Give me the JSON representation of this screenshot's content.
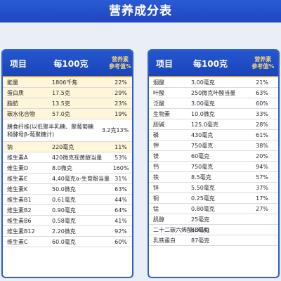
{
  "title": "营养成分表",
  "left": {
    "headers": {
      "item": "项目",
      "per": "每100克",
      "nrv": "营养素\n参考值%"
    },
    "rows": [
      {
        "name": "能量",
        "amount": "1806千焦",
        "nrv": "22%",
        "hl": true
      },
      {
        "name": "蛋白质",
        "amount": "17.5克",
        "nrv": "29%",
        "hl": true
      },
      {
        "name": "脂肪",
        "amount": "13.5克",
        "nrv": "23%",
        "hl": true
      },
      {
        "name": "碳水化合物",
        "amount": "57.0克",
        "nrv": "19%",
        "hl": true
      },
      {
        "name": "膳食纤维(以低聚半乳糖、聚葡萄糖和酵母β-葡聚糖计)",
        "amount": "3.2克",
        "nrv": "13%",
        "hl": false,
        "tall": true
      },
      {
        "name": "钠",
        "amount": "220毫克",
        "nrv": "11%",
        "hl": true
      },
      {
        "name": "维生素A",
        "amount": "420微克视黄醇当量",
        "nrv": "53%",
        "hl": false
      },
      {
        "name": "维生素D",
        "amount": "8.0微克",
        "nrv": "160%",
        "hl": false
      },
      {
        "name": "维生素E",
        "amount": "4.40毫克α-生育酚当量",
        "nrv": "31%",
        "hl": false
      },
      {
        "name": "维生素K",
        "amount": "50.0微克",
        "nrv": "63%",
        "hl": false
      },
      {
        "name": "维生素B1",
        "amount": "0.61毫克",
        "nrv": "44%",
        "hl": false
      },
      {
        "name": "维生素B2",
        "amount": "0.90毫克",
        "nrv": "64%",
        "hl": false
      },
      {
        "name": "维生素B6",
        "amount": "0.58毫克",
        "nrv": "41%",
        "hl": false
      },
      {
        "name": "维生素B12",
        "amount": "2.20微克",
        "nrv": "92%",
        "hl": false
      },
      {
        "name": "维生素C",
        "amount": "60.0毫克",
        "nrv": "60%",
        "hl": false
      }
    ]
  },
  "right": {
    "headers": {
      "item": "项目",
      "per": "每100克",
      "nrv": "营养素\n参考值%"
    },
    "rows": [
      {
        "name": "烟酸",
        "amount": "3.00毫克",
        "nrv": "21%"
      },
      {
        "name": "叶酸",
        "amount": "250微克叶酸当量",
        "nrv": "63%"
      },
      {
        "name": "泛酸",
        "amount": "3.00毫克",
        "nrv": "60%"
      },
      {
        "name": "生物素",
        "amount": "10.0微克",
        "nrv": "33%"
      },
      {
        "name": "胆碱",
        "amount": "125.0毫克",
        "nrv": "28%"
      },
      {
        "name": "磷",
        "amount": "430毫克",
        "nrv": "61%"
      },
      {
        "name": "钾",
        "amount": "750毫克",
        "nrv": "38%"
      },
      {
        "name": "镁",
        "amount": "60毫克",
        "nrv": "20%"
      },
      {
        "name": "钙",
        "amount": "750毫克",
        "nrv": "94%"
      },
      {
        "name": "铁",
        "amount": "8.5毫克",
        "nrv": "57%"
      },
      {
        "name": "锌",
        "amount": "5.50毫克",
        "nrv": "37%"
      },
      {
        "name": "铜",
        "amount": "0.25毫克",
        "nrv": "17%"
      },
      {
        "name": "锰",
        "amount": "0.80毫克",
        "nrv": "27%"
      },
      {
        "name": "肌醇",
        "amount": "25毫克",
        "nrv": ""
      },
      {
        "name": "二十二碳六烯酸(DHA)",
        "amount": "63毫克",
        "nrv": ""
      },
      {
        "name": "乳铁蛋白",
        "amount": "87毫克",
        "nrv": ""
      }
    ]
  }
}
